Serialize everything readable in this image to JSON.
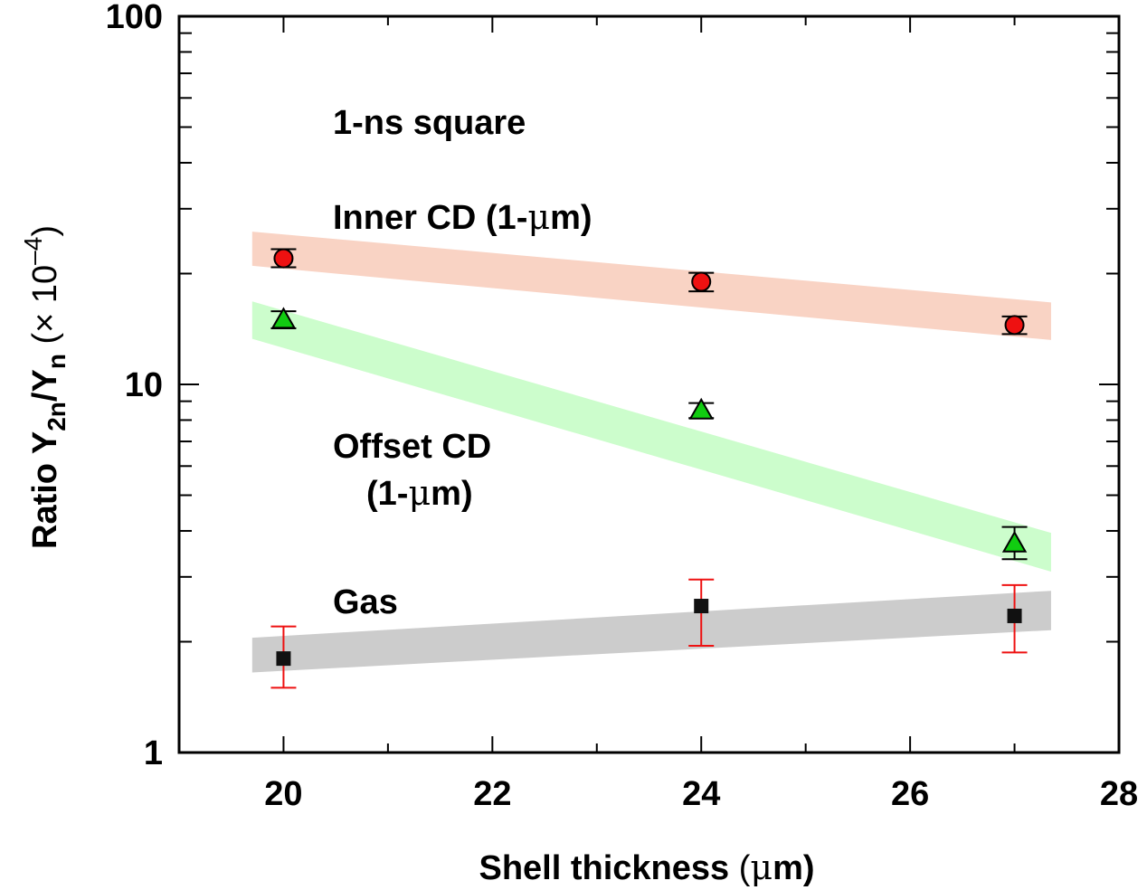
{
  "chart_data": {
    "type": "scatter",
    "title": "",
    "xlabel_main": "Shell thickness ",
    "xlabel_unit": "(",
    "xlabel_mu": "μ",
    "xlabel_rest": "m)",
    "ylabel_main": "Ratio Y",
    "ylabel_sub1": "2n",
    "ylabel_slash": "/Y",
    "ylabel_sub2": "n",
    "ylabel_factor": " (× 10",
    "ylabel_exp": "–4",
    "ylabel_close": ")",
    "xlim": [
      19,
      28
    ],
    "ylim": [
      1,
      100
    ],
    "yscale": "log",
    "x_ticks": [
      20,
      22,
      24,
      26,
      28
    ],
    "x_tick_labels": [
      "20",
      "22",
      "24",
      "26",
      "28"
    ],
    "y_tick_labels": [
      "1",
      "10",
      "100"
    ],
    "annotations": {
      "title_note": "1-ns square",
      "inner_label": "Inner CD (1-",
      "inner_mu": "μ",
      "inner_end": "m)",
      "offset_label1": "Offset CD",
      "offset_label2": "(1-",
      "offset_mu": "μ",
      "offset_end": "m)",
      "gas_label": "Gas"
    },
    "series": [
      {
        "name": "Inner CD (1-μm)",
        "marker": "circle",
        "color": "#ee1111",
        "errorbar_color": "#000000",
        "x": [
          20,
          24,
          27
        ],
        "y": [
          22,
          19,
          14.5
        ],
        "yerr_low": [
          20.8,
          17.9,
          13.7
        ],
        "yerr_high": [
          23.3,
          20.1,
          15.3
        ]
      },
      {
        "name": "Offset CD (1-μm)",
        "marker": "triangle",
        "color": "#11cc11",
        "errorbar_color": "#000000",
        "x": [
          20,
          24,
          27
        ],
        "y": [
          15,
          8.5,
          3.7
        ],
        "yerr_low": [
          14.2,
          8.1,
          3.35
        ],
        "yerr_high": [
          15.8,
          8.9,
          4.1
        ]
      },
      {
        "name": "Gas",
        "marker": "square",
        "color": "#111111",
        "errorbar_color": "#ee1111",
        "x": [
          20,
          24,
          27
        ],
        "y": [
          1.8,
          2.5,
          2.35
        ],
        "yerr_low": [
          1.5,
          1.95,
          1.87
        ],
        "yerr_high": [
          2.2,
          2.95,
          2.85
        ]
      }
    ],
    "bands": [
      {
        "name": "Inner CD band",
        "color": "#f9d3c4",
        "x": [
          19.7,
          27.35
        ],
        "y_low": [
          21,
          13.2
        ],
        "y_high": [
          26,
          16.7
        ]
      },
      {
        "name": "Offset CD band",
        "color": "#ccfdcc",
        "x": [
          19.7,
          27.35
        ],
        "y_low": [
          13.3,
          3.1
        ],
        "y_high": [
          16.8,
          3.95
        ]
      },
      {
        "name": "Gas band",
        "color": "#cccccc",
        "x": [
          19.7,
          27.35
        ],
        "y_low": [
          1.65,
          2.15
        ],
        "y_high": [
          2.05,
          2.75
        ]
      }
    ]
  }
}
